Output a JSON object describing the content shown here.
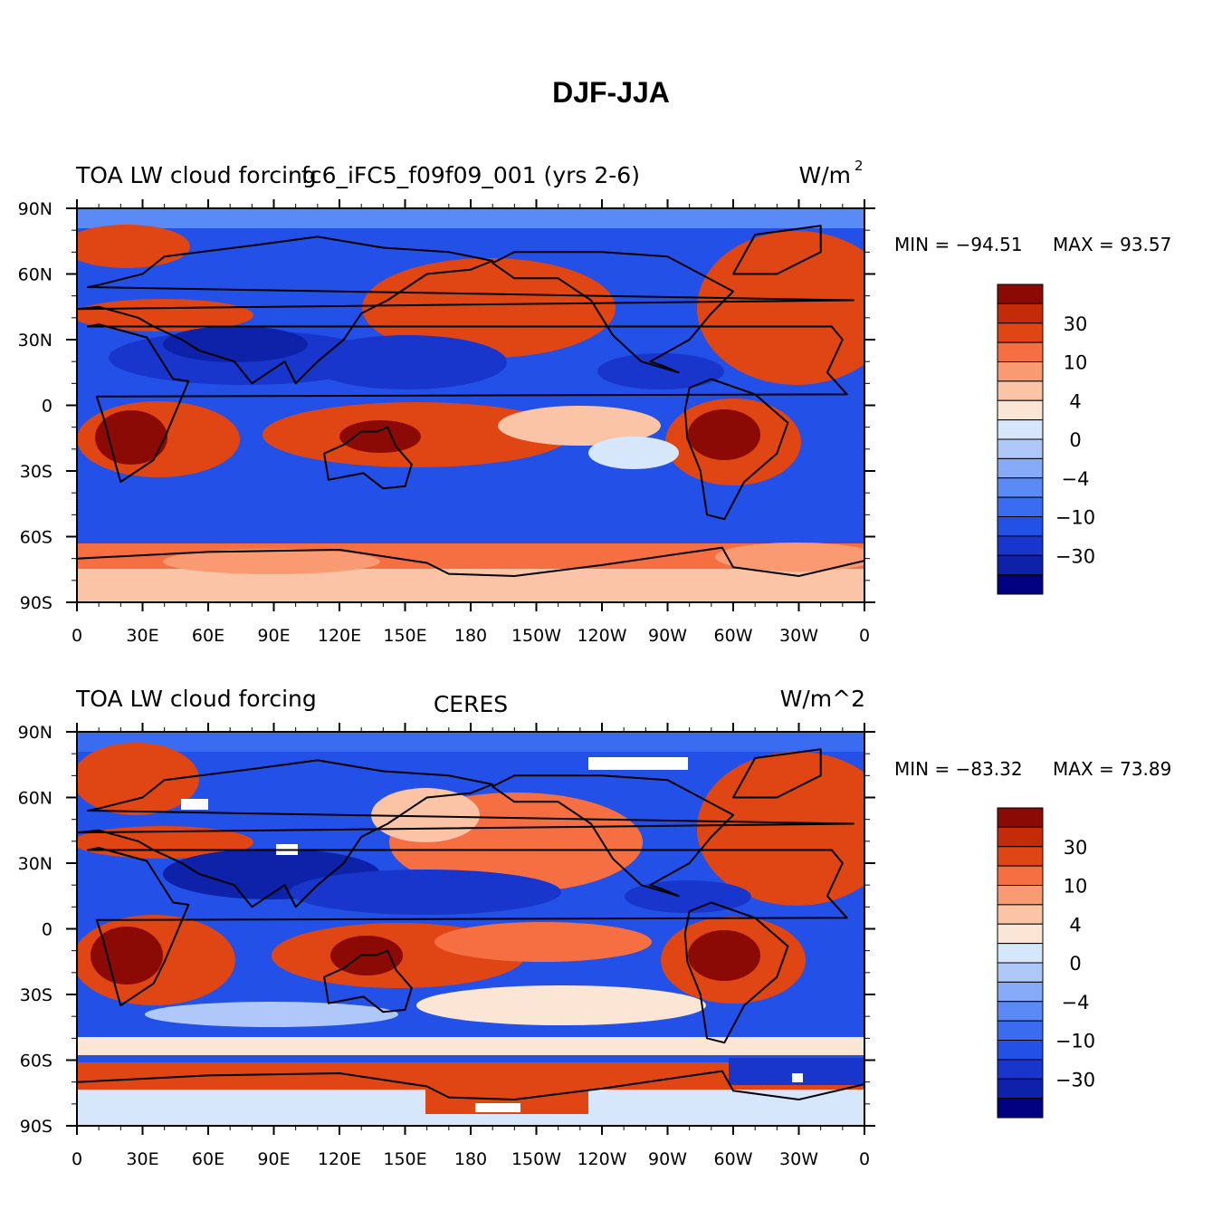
{
  "figure": {
    "title": "DJF-JJA"
  },
  "chart_data": [
    {
      "type": "heatmap",
      "title": "fc6_iFC5_f09f09_001 (yrs 2-6)",
      "left_label": "TOA LW cloud forcing",
      "units_display": "W/m",
      "units_superscript": "2",
      "x_ticks": [
        "0",
        "30E",
        "60E",
        "90E",
        "120E",
        "150E",
        "180",
        "150W",
        "120W",
        "90W",
        "60W",
        "30W",
        "0"
      ],
      "y_ticks": [
        "90N",
        "60N",
        "30N",
        "0",
        "30S",
        "60S",
        "90S"
      ],
      "x_range": [
        0,
        360
      ],
      "y_range": [
        -90,
        90
      ],
      "min_label": "MIN = −94.51",
      "max_label": "MAX =  93.57",
      "min": -94.51,
      "max": 93.57,
      "colorbar_labels": [
        "30",
        "10",
        "4",
        "0",
        "−4",
        "−10",
        "−30"
      ],
      "colorbar_levels": [
        -40,
        -30,
        -20,
        -10,
        -6,
        -4,
        -2,
        0,
        2,
        4,
        6,
        10,
        20,
        30,
        40
      ]
    },
    {
      "type": "heatmap",
      "title": "CERES",
      "left_label": "TOA LW cloud forcing",
      "units_display": "W/m^2",
      "units_superscript": "",
      "x_ticks": [
        "0",
        "30E",
        "60E",
        "90E",
        "120E",
        "150E",
        "180",
        "150W",
        "120W",
        "90W",
        "60W",
        "30W",
        "0"
      ],
      "y_ticks": [
        "90N",
        "60N",
        "30N",
        "0",
        "30S",
        "60S",
        "90S"
      ],
      "x_range": [
        0,
        360
      ],
      "y_range": [
        -90,
        90
      ],
      "min_label": "MIN = −83.32",
      "max_label": "MAX =  73.89",
      "min": -83.32,
      "max": 73.89,
      "colorbar_labels": [
        "30",
        "10",
        "4",
        "0",
        "−4",
        "−10",
        "−30"
      ],
      "colorbar_levels": [
        -40,
        -30,
        -20,
        -10,
        -6,
        -4,
        -2,
        0,
        2,
        4,
        6,
        10,
        20,
        30,
        40
      ]
    }
  ],
  "colors": {
    "palette": [
      "#000080",
      "#0d22a8",
      "#1836cc",
      "#2350e6",
      "#3a6cf2",
      "#5a8af5",
      "#86aaf7",
      "#b0c8f9",
      "#d6e6fb",
      "#fbe6d6",
      "#fbc4a6",
      "#f99a72",
      "#f56f43",
      "#e04514",
      "#c42b08",
      "#8c0a05"
    ],
    "coast": "#000000"
  }
}
